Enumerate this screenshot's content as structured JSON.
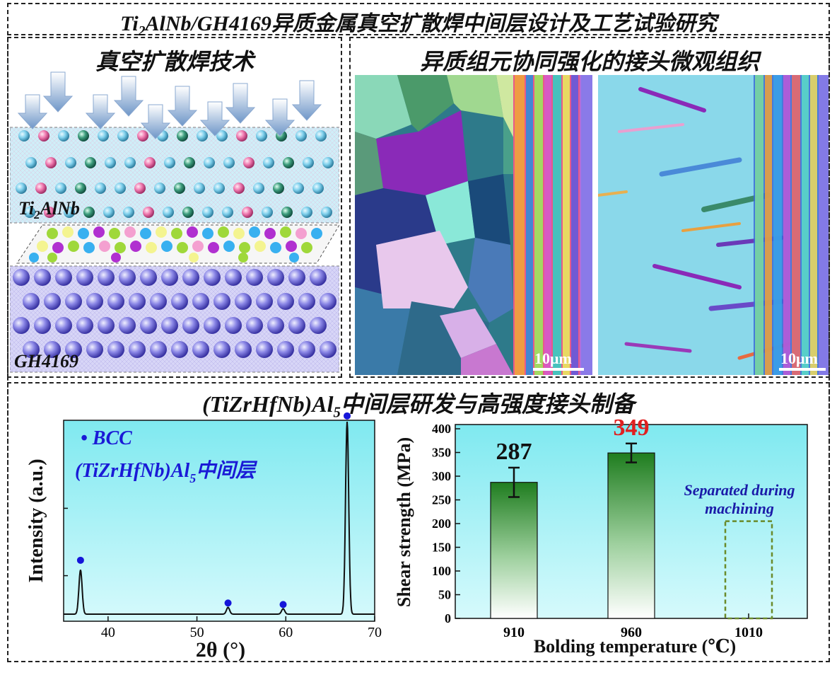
{
  "header": {
    "main_title_pre": "Ti",
    "main_title_sub": "2",
    "main_title_post": "AlNb/GH4169异质金属真空扩散焊中间层设计及工艺试验研究"
  },
  "panel_left": {
    "title": "真空扩散焊技术",
    "top_layer_pre": "Ti",
    "top_layer_sub": "2",
    "top_layer_post": "AlNb",
    "bottom_layer": "GH4169"
  },
  "panel_right": {
    "title": "异质组元协同强化的接头微观组织",
    "scale_bar_left": "10μm",
    "scale_bar_right": "10μm"
  },
  "panel_bottom": {
    "title_pre": "(TiZrHfNb)Al",
    "title_sub": "5",
    "title_post": "中间层研发与高强度接头制备"
  },
  "colors": {
    "chart_bg_top": "#7fe9f0",
    "chart_bg_bottom": "#d6fafc",
    "peak_marker": "#1515d9",
    "legend_text": "#1a1ad6",
    "bar_green_dark": "#1f7d1f",
    "highlight_red": "#e02020",
    "note_blue": "#1a1aa8"
  },
  "chart_data": [
    {
      "type": "line",
      "title": "",
      "xlabel": "2θ (°)",
      "ylabel": "Intensity (a.u.)",
      "xlim": [
        35,
        70
      ],
      "xticks": [
        40,
        50,
        60,
        70
      ],
      "legend_marker_label": "• BCC",
      "legend_label_pre": "(TiZrHfNb)Al",
      "legend_label_sub": "5",
      "legend_label_post": "中间层",
      "peaks": [
        {
          "x": 36.9,
          "y": 0.23
        },
        {
          "x": 53.5,
          "y": 0.035
        },
        {
          "x": 59.7,
          "y": 0.028
        },
        {
          "x": 66.9,
          "y": 1.0
        }
      ],
      "markers": [
        {
          "x": 36.9,
          "y": 0.28
        },
        {
          "x": 53.5,
          "y": 0.058
        },
        {
          "x": 59.7,
          "y": 0.05
        },
        {
          "x": 66.9,
          "y": 1.03
        }
      ]
    },
    {
      "type": "bar",
      "title": "",
      "xlabel": "Bolding temperature (℃)",
      "ylabel": "Shear strength (MPa)",
      "ylim": [
        0,
        400
      ],
      "yticks": [
        0,
        50,
        100,
        150,
        200,
        250,
        300,
        350,
        400
      ],
      "categories": [
        "910",
        "960",
        "1010"
      ],
      "values": [
        287,
        349,
        null
      ],
      "errors": [
        31,
        20,
        null
      ],
      "value_labels": [
        "287",
        "349",
        ""
      ],
      "placeholder_height": 205,
      "annotation_line1": "Separated during",
      "annotation_line2": "machining"
    }
  ]
}
